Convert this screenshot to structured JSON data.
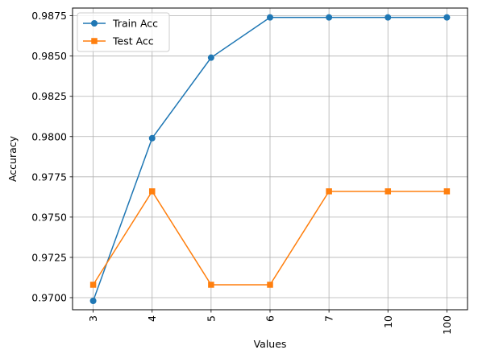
{
  "chart_data": {
    "type": "line",
    "categories": [
      "3",
      "4",
      "5",
      "6",
      "7",
      "10",
      "100"
    ],
    "series": [
      {
        "name": "Train Acc",
        "marker": "circle",
        "color": "#1f77b4",
        "values": [
          0.9698,
          0.9799,
          0.9849,
          0.9874,
          0.9874,
          0.9874,
          0.9874
        ]
      },
      {
        "name": "Test Acc",
        "marker": "square",
        "color": "#ff7f0e",
        "values": [
          0.9708,
          0.9766,
          0.9708,
          0.9708,
          0.9766,
          0.9766,
          0.9766
        ]
      }
    ],
    "title": "",
    "xlabel": "Values",
    "ylabel": "Accuracy",
    "ylim": [
      0.96925,
      0.98798
    ],
    "yticks": [
      0.97,
      0.9725,
      0.975,
      0.9775,
      0.98,
      0.9825,
      0.985,
      0.9875
    ],
    "ytick_labels": [
      "0.9700",
      "0.9725",
      "0.9750",
      "0.9775",
      "0.9800",
      "0.9825",
      "0.9850",
      "0.9875"
    ],
    "xtick_rotation": 90,
    "grid": true,
    "legend_position": "top-left"
  }
}
